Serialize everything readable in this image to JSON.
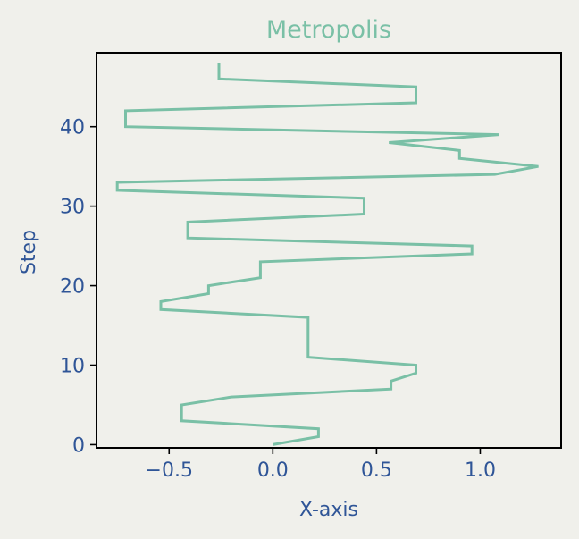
{
  "chart_data": {
    "type": "line",
    "title": "Metropolis",
    "xlabel": "X-axis",
    "ylabel": "Step",
    "xlim": [
      -0.85,
      1.39
    ],
    "ylim": [
      -0.4,
      49.3
    ],
    "xticks": [
      -0.5,
      0.0,
      0.5,
      1.0
    ],
    "xtick_labels": [
      "−0.5",
      "0.0",
      "0.5",
      "1.0"
    ],
    "yticks": [
      0,
      10,
      20,
      30,
      40
    ],
    "ytick_labels": [
      "0",
      "10",
      "20",
      "30",
      "40"
    ],
    "grid": false,
    "line_color": "#7ac0a6",
    "text_color": "#2f5597",
    "background": "#f0f0eb",
    "series": [
      {
        "x": [
          0.0,
          0.22,
          0.22,
          -0.44,
          -0.44,
          -0.44,
          -0.2,
          0.57,
          0.57,
          0.69,
          0.69,
          0.17,
          0.17,
          0.17,
          0.17,
          0.17,
          0.17,
          -0.54,
          -0.54,
          -0.31,
          -0.31,
          -0.06,
          -0.06,
          -0.06,
          0.96,
          0.96,
          -0.41,
          -0.41,
          -0.41,
          0.44,
          0.44,
          0.44,
          -0.75,
          -0.75,
          1.07,
          1.28,
          0.9,
          0.9,
          0.56,
          1.09,
          -0.71,
          -0.71,
          -0.71,
          0.69,
          0.69,
          0.69,
          -0.26,
          -0.26,
          -0.26
        ],
        "y": [
          0,
          1,
          2,
          3,
          4,
          5,
          6,
          7,
          8,
          9,
          10,
          11,
          12,
          13,
          14,
          15,
          16,
          17,
          18,
          19,
          20,
          21,
          22,
          23,
          24,
          25,
          26,
          27,
          28,
          29,
          30,
          31,
          32,
          33,
          34,
          35,
          36,
          37,
          38,
          39,
          40,
          41,
          42,
          43,
          44,
          45,
          46,
          47,
          48
        ]
      }
    ]
  }
}
